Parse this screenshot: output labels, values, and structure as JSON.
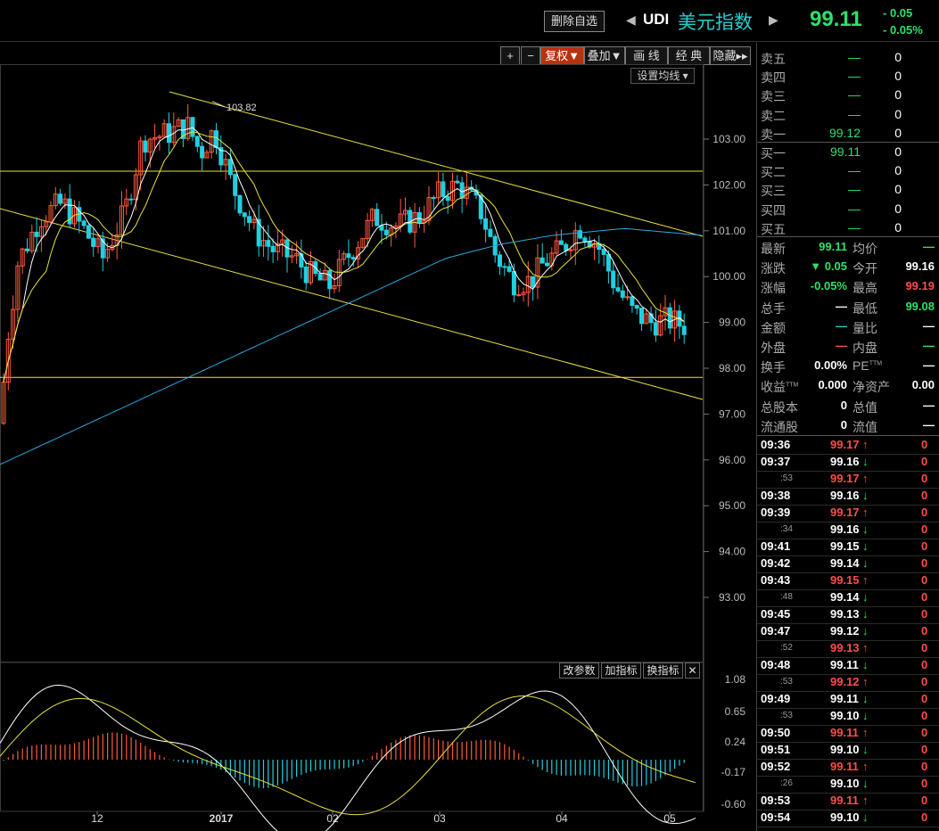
{
  "header": {
    "delete_btn": "删除自选",
    "prev_arrow": "◀",
    "next_arrow": "▶",
    "code": "UDI",
    "name": "美元指数",
    "price": "99.11",
    "change": "- 0.05",
    "change_pct": "- 0.05%"
  },
  "toolbar": {
    "plus": "+",
    "minus": "−",
    "fuquan": "复权▼",
    "diejia": "叠加▼",
    "huaxian": "画 线",
    "jingdian": "经 典",
    "yincang": "隐藏▸▸",
    "ma_setting": "设置均线 ▾"
  },
  "indicator_toolbar": {
    "change_params": "改参数",
    "add_indicator": "加指标",
    "switch_indicator": "换指标",
    "close": "✕"
  },
  "chart_data": {
    "type": "candlestick",
    "price_axis": [
      "103.00",
      "102.00",
      "101.00",
      "100.00",
      "99.00",
      "98.00",
      "97.00",
      "96.00",
      "95.00",
      "94.00",
      "93.00"
    ],
    "ylim": [
      92.0,
      104.3
    ],
    "macd_axis": [
      "1.08",
      "0.65",
      "0.24",
      "-0.17",
      "-0.60"
    ],
    "x_labels": [
      "12",
      "2017",
      "02",
      "03",
      "04",
      "05"
    ],
    "high_marker": "103.82",
    "colors": {
      "up": "#ff5a3c",
      "down": "#20d0e0",
      "ma_fast": "#ffffff",
      "ma_slow": "#e8e040",
      "ma_long": "#2aa8e0",
      "trendline": "#e8e040"
    }
  },
  "panel": {
    "order_book": [
      {
        "label": "卖五",
        "price": "—",
        "vol": "0"
      },
      {
        "label": "卖四",
        "price": "—",
        "vol": "0"
      },
      {
        "label": "卖三",
        "price": "—",
        "vol": "0"
      },
      {
        "label": "卖二",
        "price": "—",
        "vol": "0"
      },
      {
        "label": "卖一",
        "price": "99.12",
        "vol": "0"
      },
      {
        "label": "买一",
        "price": "99.11",
        "vol": "0"
      },
      {
        "label": "买二",
        "price": "—",
        "vol": "0"
      },
      {
        "label": "买三",
        "price": "—",
        "vol": "0"
      },
      {
        "label": "买四",
        "price": "—",
        "vol": "0"
      },
      {
        "label": "买五",
        "price": "—",
        "vol": "0"
      }
    ],
    "stats": [
      {
        "l1": "最新",
        "v1": "99.11",
        "c1": "green",
        "l2": "均价",
        "v2": "—",
        "c2": "dash"
      },
      {
        "l1": "涨跌",
        "v1": "▼ 0.05",
        "c1": "green",
        "l2": "今开",
        "v2": "99.16",
        "c2": "white"
      },
      {
        "l1": "涨幅",
        "v1": "-0.05%",
        "c1": "green",
        "l2": "最高",
        "v2": "99.19",
        "c2": "red"
      },
      {
        "l1": "总手",
        "v1": "—",
        "c1": "white",
        "l2": "最低",
        "v2": "99.08",
        "c2": "green"
      },
      {
        "l1": "金额",
        "v1": "—",
        "c1": "cyan",
        "l2": "量比",
        "v2": "—",
        "c2": "white"
      },
      {
        "l1": "外盘",
        "v1": "—",
        "c1": "red",
        "l2": "内盘",
        "v2": "—",
        "c2": "dash"
      },
      {
        "l1": "换手",
        "v1": "0.00%",
        "c1": "white",
        "l2": "PE",
        "l2sup": "TTM",
        "v2": "—",
        "c2": "white"
      },
      {
        "l1": "收益",
        "l1sup": "TTM",
        "v1": "0.000",
        "c1": "white",
        "l2": "净资产",
        "v2": "0.00",
        "c2": "white"
      },
      {
        "l1": "总股本",
        "v1": "0",
        "c1": "white",
        "l2": "总值",
        "v2": "—",
        "c2": "white"
      },
      {
        "l1": "流通股",
        "v1": "0",
        "c1": "white",
        "l2": "流值",
        "v2": "—",
        "c2": "white"
      }
    ],
    "ticks": [
      {
        "time": "09:36",
        "price": "99.17",
        "dir": "up",
        "vol": "0"
      },
      {
        "time": "09:37",
        "price": "99.16",
        "dir": "down",
        "vol": "0"
      },
      {
        "time": ":53",
        "price": "99.17",
        "dir": "up",
        "vol": "0"
      },
      {
        "time": "09:38",
        "price": "99.16",
        "dir": "down",
        "vol": "0"
      },
      {
        "time": "09:39",
        "price": "99.17",
        "dir": "up",
        "vol": "0"
      },
      {
        "time": ":34",
        "price": "99.16",
        "dir": "down",
        "vol": "0"
      },
      {
        "time": "09:41",
        "price": "99.15",
        "dir": "down",
        "vol": "0"
      },
      {
        "time": "09:42",
        "price": "99.14",
        "dir": "down",
        "vol": "0"
      },
      {
        "time": "09:43",
        "price": "99.15",
        "dir": "up",
        "vol": "0"
      },
      {
        "time": ":48",
        "price": "99.14",
        "dir": "down",
        "vol": "0"
      },
      {
        "time": "09:45",
        "price": "99.13",
        "dir": "down",
        "vol": "0"
      },
      {
        "time": "09:47",
        "price": "99.12",
        "dir": "down",
        "vol": "0"
      },
      {
        "time": ":52",
        "price": "99.13",
        "dir": "up",
        "vol": "0"
      },
      {
        "time": "09:48",
        "price": "99.11",
        "dir": "down",
        "vol": "0"
      },
      {
        "time": ":53",
        "price": "99.12",
        "dir": "up",
        "vol": "0"
      },
      {
        "time": "09:49",
        "price": "99.11",
        "dir": "down",
        "vol": "0"
      },
      {
        "time": ":53",
        "price": "99.10",
        "dir": "down",
        "vol": "0"
      },
      {
        "time": "09:50",
        "price": "99.11",
        "dir": "up",
        "vol": "0"
      },
      {
        "time": "09:51",
        "price": "99.10",
        "dir": "down",
        "vol": "0"
      },
      {
        "time": "09:52",
        "price": "99.11",
        "dir": "up",
        "vol": "0"
      },
      {
        "time": ":26",
        "price": "99.10",
        "dir": "down",
        "vol": "0"
      },
      {
        "time": "09:53",
        "price": "99.11",
        "dir": "up",
        "vol": "0"
      },
      {
        "time": "09:54",
        "price": "99.10",
        "dir": "down",
        "vol": "0"
      }
    ]
  }
}
